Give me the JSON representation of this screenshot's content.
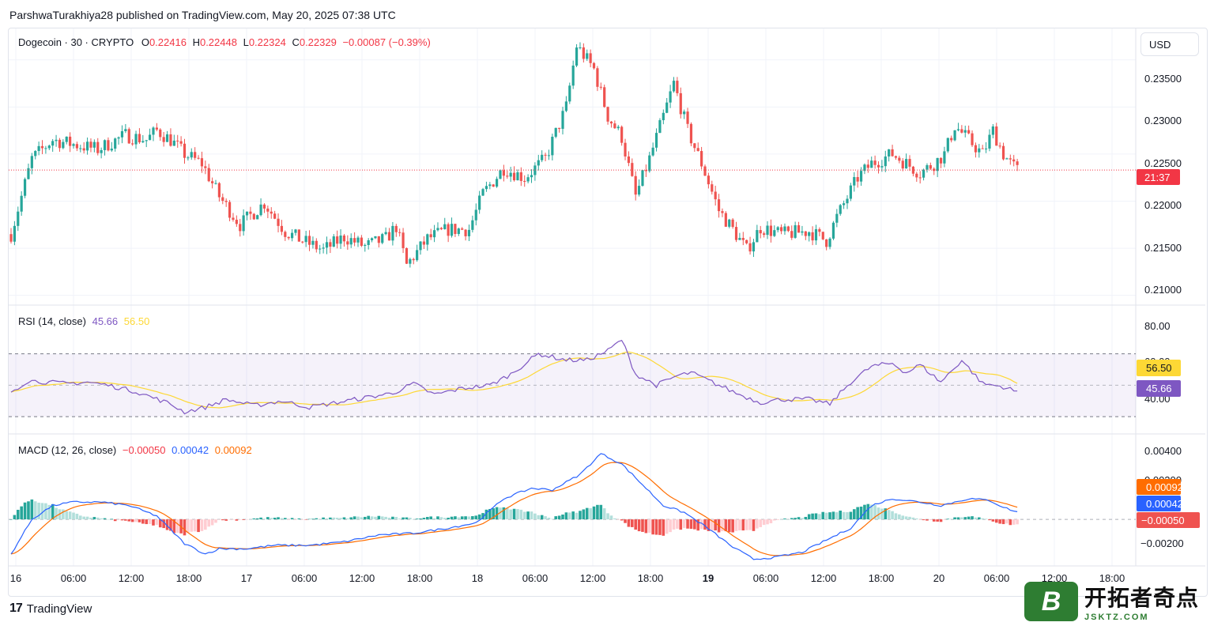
{
  "header": {
    "publisher": "ParshwaTurakhiya28 published on TradingView.com, May 20, 2025 07:38 UTC"
  },
  "main_legend": {
    "symbol": "Dogecoin · 30 · CRYPTO",
    "o_label": "O",
    "o": "0.22416",
    "h_label": "H",
    "h": "0.22448",
    "l_label": "L",
    "l": "0.22324",
    "c_label": "C",
    "c": "0.22329",
    "change": "−0.00087 (−0.39%)"
  },
  "currency": "USD",
  "price_axis": {
    "ticks": [
      "0.23500",
      "0.23000",
      "0.22500",
      "0.22000",
      "0.21500",
      "0.21000"
    ],
    "last_label": "21:37"
  },
  "rsi_legend": {
    "name": "RSI (14, close)",
    "rsi": "45.66",
    "ma": "56.50"
  },
  "rsi_axis": {
    "ticks": [
      "80.00",
      "60.00",
      "40.00"
    ],
    "ma_label": "56.50",
    "rsi_label": "45.66"
  },
  "macd_legend": {
    "name": "MACD (12, 26, close)",
    "hist": "−0.00050",
    "macd": "0.00042",
    "signal": "0.00092"
  },
  "macd_axis": {
    "ticks": [
      "0.00400",
      "0.00200",
      "−0.00200"
    ],
    "signal_label": "0.00092",
    "macd_label": "0.00042",
    "hist_label": "−0.00050"
  },
  "time_axis": {
    "ticks": [
      "16",
      "06:00",
      "12:00",
      "18:00",
      "17",
      "06:00",
      "12:00",
      "18:00",
      "18",
      "06:00",
      "12:00",
      "18:00",
      "19",
      "06:00",
      "12:00",
      "18:00",
      "20",
      "06:00",
      "12:00",
      "18:00"
    ]
  },
  "branding": {
    "tv_logo": "TradingView",
    "watermark_badge": "B",
    "watermark_cn": "开拓者奇点",
    "watermark_en": "JSKTZ.COM"
  },
  "colors": {
    "up": "#26a69a",
    "down": "#ef5350",
    "rsi": "#7e57c2",
    "rsi_ma": "#fdd835",
    "macd": "#2962ff",
    "signal": "#ff6d00",
    "hist_up_strong": "#26a69a",
    "hist_up_weak": "#b2dfdb",
    "hist_down_strong": "#ef5350",
    "hist_down_weak": "#ffcdd2",
    "last_price": "#f23645"
  },
  "chart_data": {
    "type": "candlestick",
    "interval": "30",
    "bar_start": "2025-05-15 20:00",
    "price_keypoints": [
      [
        0,
        0.2165
      ],
      [
        6,
        0.2245
      ],
      [
        12,
        0.2265
      ],
      [
        25,
        0.2255
      ],
      [
        33,
        0.227
      ],
      [
        39,
        0.2265
      ],
      [
        42,
        0.2275
      ],
      [
        46,
        0.2265
      ],
      [
        50,
        0.225
      ],
      [
        55,
        0.224
      ],
      [
        60,
        0.2205
      ],
      [
        66,
        0.2175
      ],
      [
        73,
        0.2198
      ],
      [
        79,
        0.2168
      ],
      [
        84,
        0.2158
      ],
      [
        90,
        0.2148
      ],
      [
        96,
        0.2162
      ],
      [
        102,
        0.2152
      ],
      [
        108,
        0.216
      ],
      [
        111,
        0.2173
      ],
      [
        114,
        0.2132
      ],
      [
        120,
        0.216
      ],
      [
        126,
        0.217
      ],
      [
        132,
        0.217
      ],
      [
        136,
        0.2208
      ],
      [
        142,
        0.2235
      ],
      [
        148,
        0.2225
      ],
      [
        154,
        0.2245
      ],
      [
        160,
        0.23
      ],
      [
        163,
        0.2365
      ],
      [
        168,
        0.234
      ],
      [
        172,
        0.229
      ],
      [
        176,
        0.2268
      ],
      [
        180,
        0.2205
      ],
      [
        184,
        0.2245
      ],
      [
        188,
        0.229
      ],
      [
        191,
        0.2325
      ],
      [
        195,
        0.2275
      ],
      [
        199,
        0.224
      ],
      [
        204,
        0.219
      ],
      [
        208,
        0.217
      ],
      [
        212,
        0.2148
      ],
      [
        216,
        0.2172
      ],
      [
        222,
        0.2165
      ],
      [
        230,
        0.2168
      ],
      [
        235,
        0.2158
      ],
      [
        238,
        0.2183
      ],
      [
        244,
        0.2225
      ],
      [
        248,
        0.224
      ],
      [
        254,
        0.225
      ],
      [
        258,
        0.224
      ],
      [
        262,
        0.223
      ],
      [
        266,
        0.224
      ],
      [
        269,
        0.225
      ],
      [
        272,
        0.228
      ],
      [
        276,
        0.2265
      ],
      [
        280,
        0.225
      ],
      [
        283,
        0.2275
      ],
      [
        286,
        0.225
      ],
      [
        288,
        0.224
      ],
      [
        290,
        0.2233
      ]
    ],
    "rsi_keypoints": [
      [
        0,
        46
      ],
      [
        5,
        53
      ],
      [
        10,
        52
      ],
      [
        16,
        51
      ],
      [
        22,
        52
      ],
      [
        28,
        50
      ],
      [
        36,
        46
      ],
      [
        46,
        38
      ],
      [
        50,
        33
      ],
      [
        56,
        36
      ],
      [
        62,
        41
      ],
      [
        70,
        37
      ],
      [
        78,
        40
      ],
      [
        86,
        36
      ],
      [
        94,
        39
      ],
      [
        102,
        42
      ],
      [
        110,
        45
      ],
      [
        116,
        51
      ],
      [
        122,
        44
      ],
      [
        130,
        48
      ],
      [
        138,
        50
      ],
      [
        144,
        57
      ],
      [
        152,
        70
      ],
      [
        160,
        66
      ],
      [
        166,
        66
      ],
      [
        172,
        72
      ],
      [
        176,
        79
      ],
      [
        180,
        57
      ],
      [
        186,
        50
      ],
      [
        192,
        56
      ],
      [
        196,
        58
      ],
      [
        202,
        52
      ],
      [
        210,
        44
      ],
      [
        216,
        39
      ],
      [
        222,
        41
      ],
      [
        230,
        41
      ],
      [
        236,
        38
      ],
      [
        242,
        52
      ],
      [
        248,
        62
      ],
      [
        254,
        64
      ],
      [
        258,
        58
      ],
      [
        262,
        63
      ],
      [
        268,
        52
      ],
      [
        274,
        66
      ],
      [
        280,
        51
      ],
      [
        286,
        49
      ],
      [
        290,
        45.66
      ]
    ],
    "macd_keypoints": [
      [
        0,
        -0.002
      ],
      [
        6,
        0.0
      ],
      [
        12,
        0.0008
      ],
      [
        18,
        0.001
      ],
      [
        26,
        0.001
      ],
      [
        34,
        0.0008
      ],
      [
        42,
        0.0002
      ],
      [
        50,
        -0.0014
      ],
      [
        56,
        -0.002
      ],
      [
        60,
        -0.0017
      ],
      [
        68,
        -0.0017
      ],
      [
        76,
        -0.0015
      ],
      [
        86,
        -0.0015
      ],
      [
        96,
        -0.0013
      ],
      [
        106,
        -0.0009
      ],
      [
        116,
        -0.0008
      ],
      [
        126,
        -0.0005
      ],
      [
        134,
        -0.0002
      ],
      [
        142,
        0.0012
      ],
      [
        150,
        0.0018
      ],
      [
        156,
        0.0017
      ],
      [
        164,
        0.0026
      ],
      [
        170,
        0.0038
      ],
      [
        176,
        0.0032
      ],
      [
        182,
        0.002
      ],
      [
        188,
        0.0008
      ],
      [
        194,
        0.0004
      ],
      [
        200,
        -0.0004
      ],
      [
        208,
        -0.0016
      ],
      [
        214,
        -0.0023
      ],
      [
        220,
        -0.0022
      ],
      [
        228,
        -0.0019
      ],
      [
        234,
        -0.0013
      ],
      [
        242,
        -0.0005
      ],
      [
        248,
        0.0008
      ],
      [
        254,
        0.0012
      ],
      [
        262,
        0.001
      ],
      [
        268,
        0.0008
      ],
      [
        276,
        0.0012
      ],
      [
        282,
        0.0011
      ],
      [
        286,
        0.0007
      ],
      [
        290,
        0.00042
      ]
    ],
    "price_ylim": [
      0.2093,
      0.238
    ],
    "rsi_ylim": [
      20,
      100
    ],
    "macd_ylim": [
      -0.0026,
      0.0048
    ],
    "rsi_bands": [
      30,
      50,
      70
    ]
  }
}
